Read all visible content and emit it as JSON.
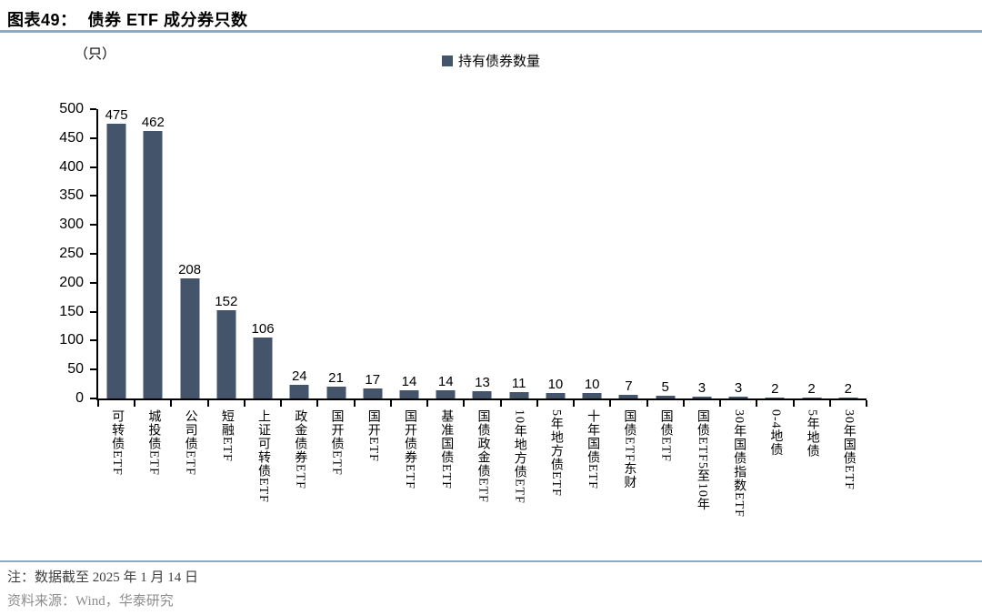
{
  "header": {
    "title_prefix": "图表49：",
    "title_text": "债券 ETF 成分券只数"
  },
  "chart_data": {
    "type": "bar",
    "title": "债券 ETF 成分券只数",
    "unit_label": "（只）",
    "legend": {
      "label": "持有债券数量",
      "position": "top-center",
      "swatch_color": "#44546A"
    },
    "bar_color": "#44546A",
    "categories": [
      "可转债ETF",
      "城投债ETF",
      "公司债ETF",
      "短融ETF",
      "上证可转债ETF",
      "政金债券ETF",
      "国开债ETF",
      "国开ETF",
      "国开债券ETF",
      "基准国债ETF",
      "国债政金债ETF",
      "10年地方债ETF",
      "5年地方债ETF",
      "十年国债ETF",
      "国债ETF东财",
      "国债ETF",
      "国债ETF5至10年",
      "30年国债指数ETF",
      "0-4地债",
      "5年地债",
      "30年国债ETF"
    ],
    "values": [
      475,
      462,
      208,
      152,
      106,
      24,
      21,
      17,
      14,
      14,
      13,
      11,
      10,
      10,
      7,
      5,
      3,
      3,
      2,
      2,
      2
    ],
    "ylim": [
      0,
      500
    ],
    "yticks": [
      0,
      50,
      100,
      150,
      200,
      250,
      300,
      350,
      400,
      450,
      500
    ],
    "grid": false,
    "value_labels": true,
    "xlabel": "",
    "ylabel": ""
  },
  "footer": {
    "note": "注：数据截至 2025 年 1 月 14 日",
    "source": "资料来源：Wind，华泰研究"
  },
  "colors": {
    "bar": "#44546A",
    "rule": "#8FA8C3",
    "axis": "#000000",
    "note_text": "#3F3F3F",
    "source_text": "#8C8C8C"
  }
}
